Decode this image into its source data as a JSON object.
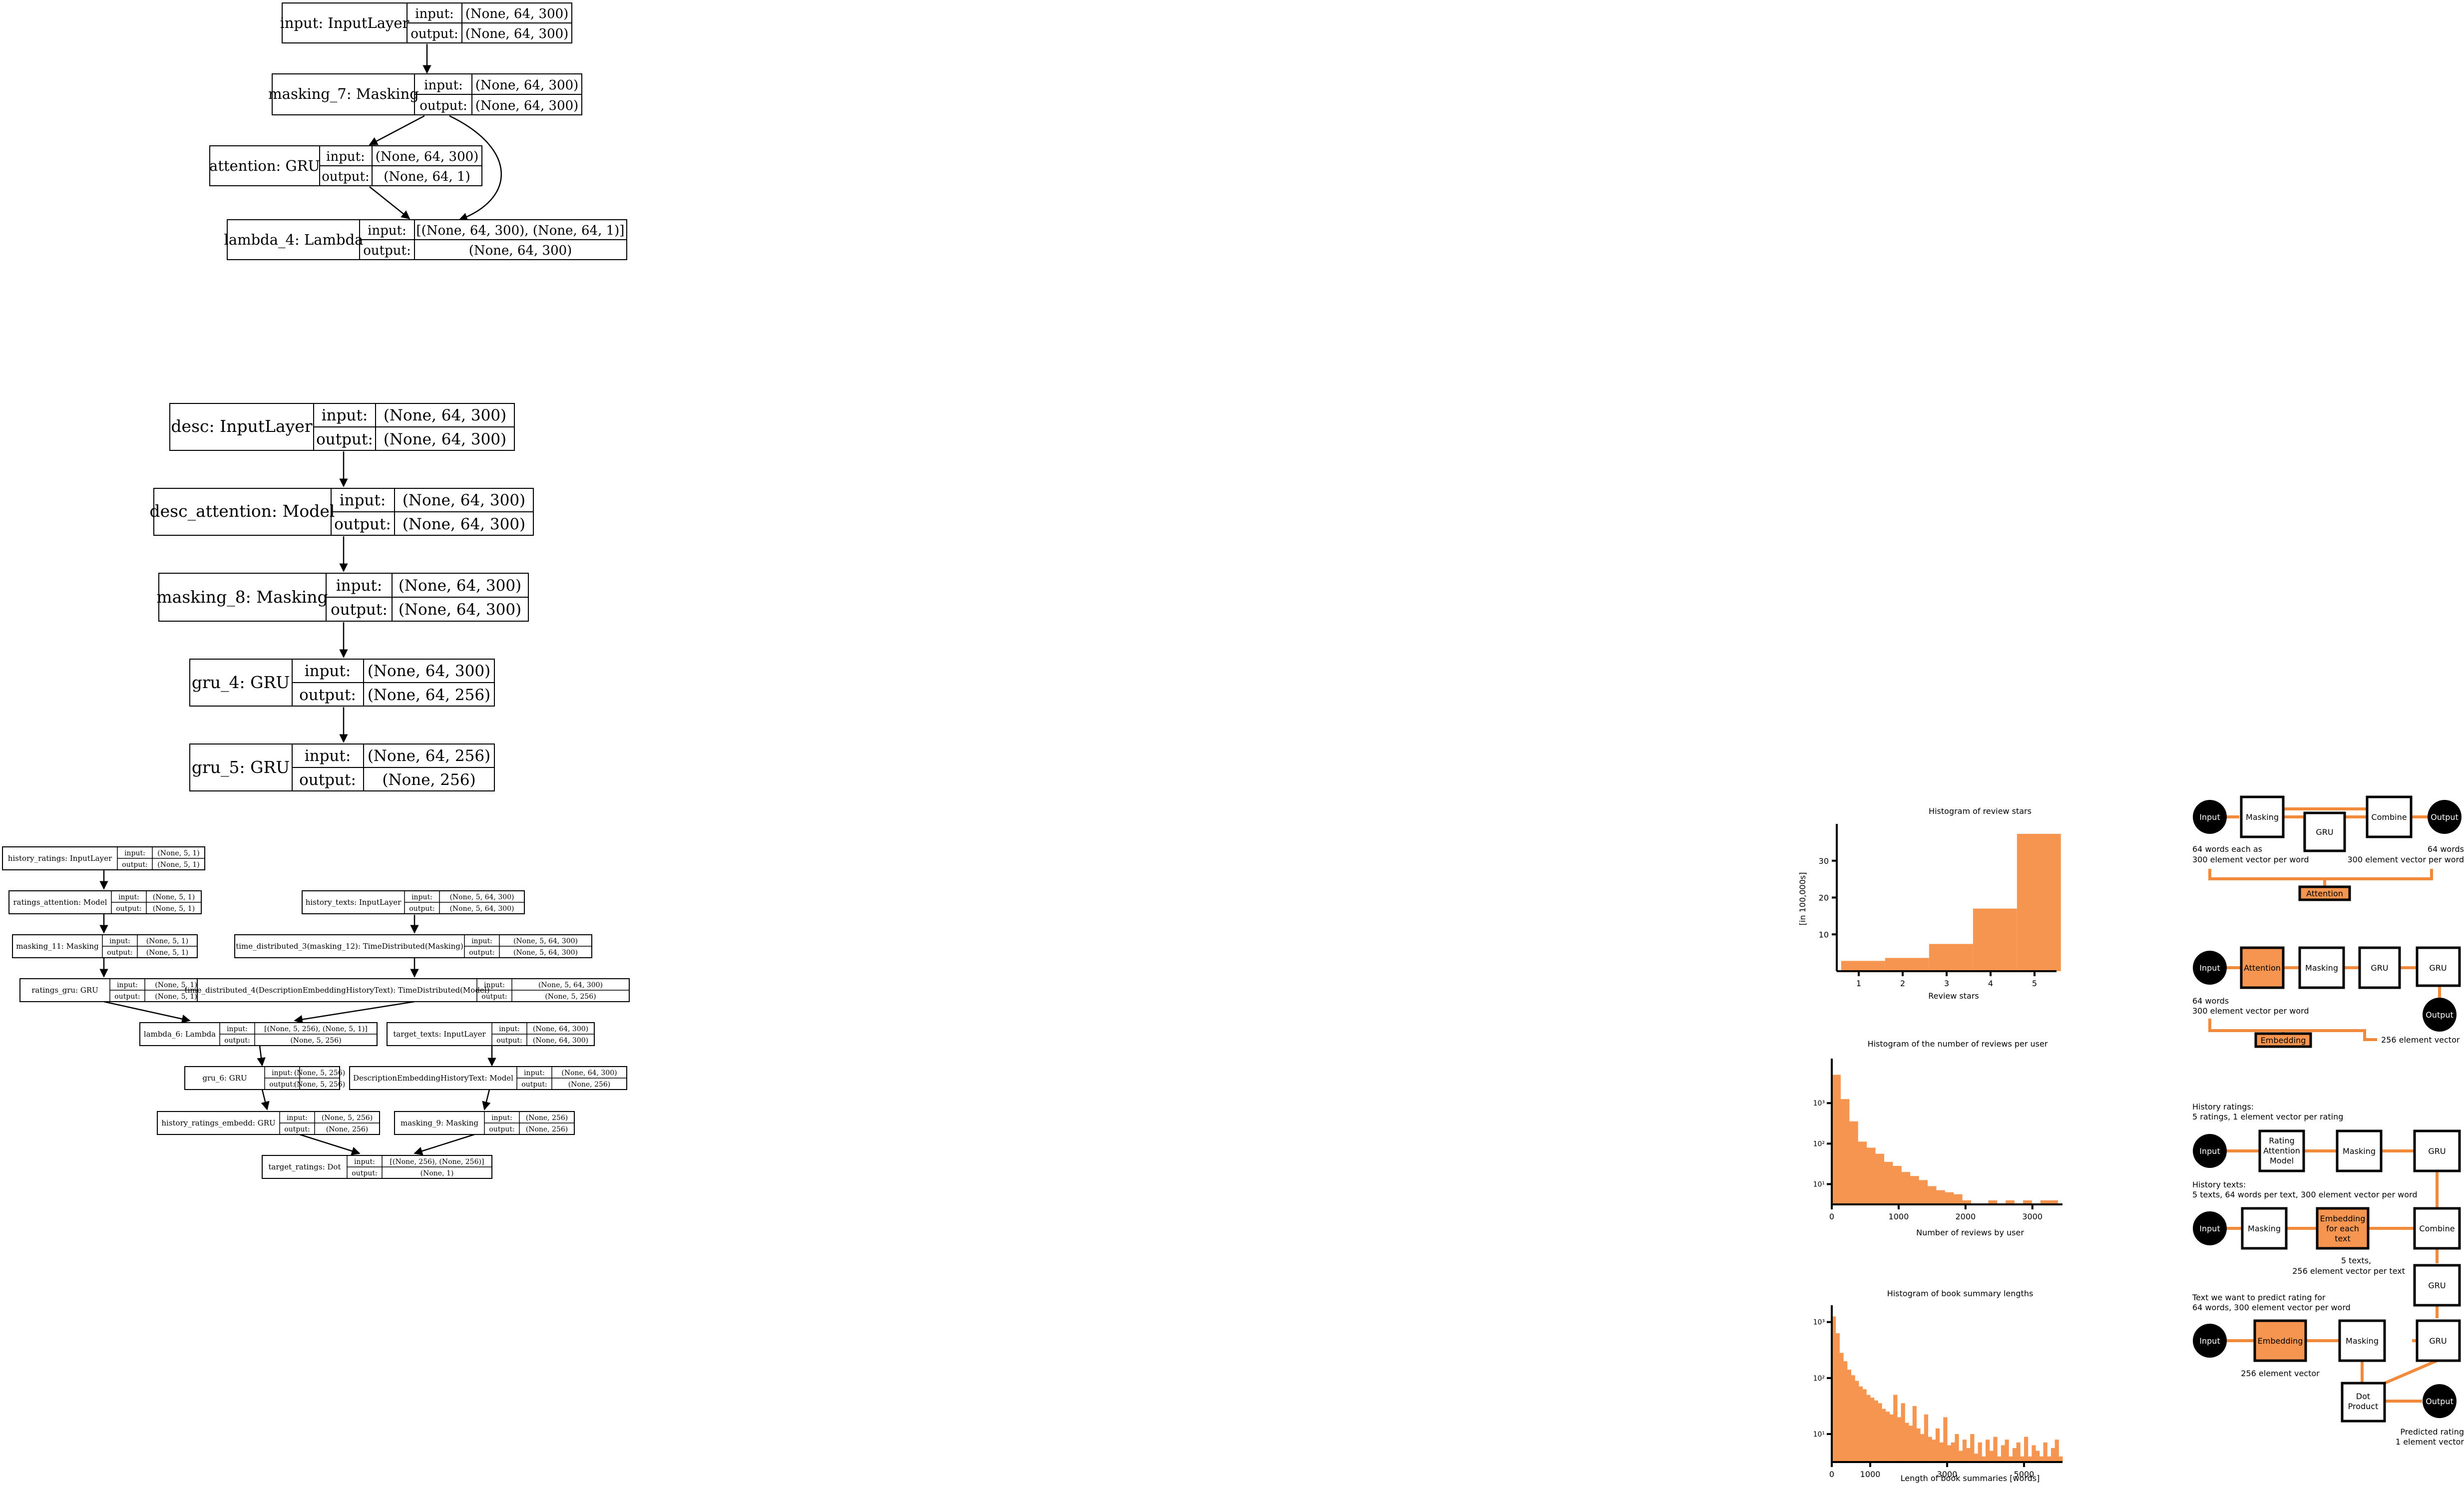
{
  "keras_graphs": [
    {
      "nodes": [
        {
          "name": "input: InputLayer",
          "input": "(None, 64, 300)",
          "output": "(None, 64, 300)"
        },
        {
          "name": "masking_7: Masking",
          "input": "(None, 64, 300)",
          "output": "(None, 64, 300)"
        },
        {
          "name": "attention: GRU",
          "input": "(None, 64, 300)",
          "output": "(None, 64, 1)"
        },
        {
          "name": "lambda_4: Lambda",
          "input": "[(None, 64, 300), (None, 64, 1)]",
          "output": "(None, 64, 300)"
        }
      ]
    },
    {
      "nodes": [
        {
          "name": "desc: InputLayer",
          "input": "(None, 64, 300)",
          "output": "(None, 64, 300)"
        },
        {
          "name": "desc_attention: Model",
          "input": "(None, 64, 300)",
          "output": "(None, 64, 300)"
        },
        {
          "name": "masking_8: Masking",
          "input": "(None, 64, 300)",
          "output": "(None, 64, 300)"
        },
        {
          "name": "gru_4: GRU",
          "input": "(None, 64, 300)",
          "output": "(None, 64, 256)"
        },
        {
          "name": "gru_5: GRU",
          "input": "(None, 64, 256)",
          "output": "(None, 256)"
        }
      ]
    },
    {
      "nodes": [
        {
          "name": "history_ratings: InputLayer",
          "input": "(None, 5, 1)",
          "output": "(None, 5, 1)"
        },
        {
          "name": "ratings_attention: Model",
          "input": "(None, 5, 1)",
          "output": "(None, 5, 1)"
        },
        {
          "name": "history_texts: InputLayer",
          "input": "(None, 5, 64, 300)",
          "output": "(None, 5, 64, 300)"
        },
        {
          "name": "masking_11: Masking",
          "input": "(None, 5, 1)",
          "output": "(None, 5, 1)"
        },
        {
          "name": "time_distributed_3(masking_12): TimeDistributed(Masking)",
          "input": "(None, 5, 64, 300)",
          "output": "(None, 5, 64, 300)"
        },
        {
          "name": "ratings_gru: GRU",
          "input": "(None, 5, 1)",
          "output": "(None, 5, 1)"
        },
        {
          "name": "time_distributed_4(DescriptionEmbeddingHistoryText): TimeDistributed(Model)",
          "input": "(None, 5, 64, 300)",
          "output": "(None, 5, 256)"
        },
        {
          "name": "lambda_6: Lambda",
          "input": "[(None, 5, 256), (None, 5, 1)]",
          "output": "(None, 5, 256)"
        },
        {
          "name": "target_texts: InputLayer",
          "input": "(None, 64, 300)",
          "output": "(None, 64, 300)"
        },
        {
          "name": "gru_6: GRU",
          "input": "(None, 5, 256)",
          "output": "(None, 5, 256)"
        },
        {
          "name": "DescriptionEmbeddingHistoryText: Model",
          "input": "(None, 64, 300)",
          "output": "(None, 256)"
        },
        {
          "name": "history_ratings_embedd: GRU",
          "input": "(None, 5, 256)",
          "output": "(None, 256)"
        },
        {
          "name": "masking_9: Masking",
          "input": "(None, 256)",
          "output": "(None, 256)"
        },
        {
          "name": "target_ratings: Dot",
          "input": "[(None, 256), (None, 256)]",
          "output": "(None, 1)"
        }
      ]
    }
  ],
  "port_labels": {
    "input": "input:",
    "output": "output:"
  },
  "charts": [
    {
      "type": "bar",
      "title": "Histogram of review stars",
      "xlabel": "Review stars",
      "ylabel": "[in 100,000s]",
      "x_ticks": [
        "1",
        "2",
        "3",
        "4",
        "5"
      ],
      "y_ticks": [
        "10",
        "20",
        "30"
      ],
      "ylim": [
        0,
        40
      ],
      "xlim": [
        0.5,
        5.5
      ],
      "bins": [
        [
          0.6,
          1.6,
          2.8
        ],
        [
          1.6,
          2.6,
          3.6
        ],
        [
          2.6,
          3.6,
          7.4
        ],
        [
          3.6,
          4.6,
          17.0
        ],
        [
          4.6,
          5.6,
          37.3
        ]
      ]
    },
    {
      "type": "bar",
      "title": "Histogram of the number of reviews per user",
      "xlabel": "Number of reviews by user",
      "x_ticks": [
        "0",
        "1000",
        "2000",
        "3000"
      ],
      "y_ticks": [
        "10³",
        "10²",
        "10¹"
      ],
      "y_scale": "log",
      "xlim": [
        0,
        3450
      ],
      "ylim_log10": [
        0.5,
        4.1
      ],
      "bins_log10": [
        3.7,
        3.1,
        2.55,
        2.05,
        1.9,
        1.75,
        1.55,
        1.45,
        1.3,
        1.2,
        1.1,
        0.95,
        0.85,
        0.8,
        0.75,
        0.6,
        0,
        0,
        0.6,
        0,
        0.6,
        0,
        0.6,
        0,
        0.6,
        0.6
      ],
      "bin_width": 130
    },
    {
      "type": "bar",
      "title": "Histogram of book summary lengths",
      "xlabel": "Length of book summaries [words]",
      "x_ticks": [
        "0",
        "1000",
        "3000",
        "5000"
      ],
      "y_ticks": [
        "10³",
        "10²",
        "10¹"
      ],
      "y_scale": "log",
      "xlim": [
        0,
        6000
      ],
      "ylim_log10": [
        0.5,
        3.3
      ],
      "bins_log10": [
        3.1,
        2.8,
        2.45,
        2.3,
        2.15,
        2.05,
        1.95,
        1.85,
        1.8,
        1.7,
        1.65,
        1.6,
        1.55,
        1.45,
        1.4,
        1.35,
        1.7,
        1.3,
        1.55,
        1.2,
        1.15,
        1.5,
        1.1,
        1.0,
        1.35,
        0.95,
        0.9,
        1.1,
        0.85,
        1.3,
        0.8,
        0.85,
        1.0,
        0.7,
        0.9,
        0.75,
        1.0,
        0.65,
        0.85,
        0.6,
        0.9,
        0.7,
        0.95,
        0.6,
        0.8,
        0.9,
        0.6,
        0.75,
        0.85,
        0.6,
        0.95,
        0.6,
        0.8,
        0.7,
        0.6,
        0.85,
        0.6,
        0.75,
        0.9,
        0.6
      ],
      "bin_width": 100
    }
  ],
  "flow_diagrams": {
    "attention": {
      "input": "Input",
      "masking": "Masking",
      "gru": "GRU",
      "combine": "Combine",
      "output": "Output",
      "note_in_1": "64 words each as",
      "note_in_2": "300 element vector per word",
      "note_out_1": "64 words",
      "note_out_2": "300 element vector per word",
      "tag": "Attention"
    },
    "embedding": {
      "input": "Input",
      "attention": "Attention",
      "masking": "Masking",
      "gru1": "GRU",
      "gru2": "GRU",
      "output": "Output",
      "note_in_1": "64 words",
      "note_in_2": "300 element vector per word",
      "note_out": "256 element vector",
      "tag": "Embedding"
    },
    "full": {
      "ratings_head_1": "History ratings:",
      "ratings_head_2": "5 ratings, 1 element vector per rating",
      "input1": "Input",
      "rating_att_1": "Rating",
      "rating_att_2": "Attention",
      "rating_att_3": "Model",
      "masking1": "Masking",
      "gru_a": "GRU",
      "texts_head_1": "History texts:",
      "texts_head_2": "5 texts, 64 words per text, 300 element vector per word",
      "input2": "Input",
      "masking2": "Masking",
      "emb_each_1": "Embedding",
      "emb_each_2": "for each",
      "emb_each_3": "text",
      "combine": "Combine",
      "note_mid_1": "5 texts,",
      "note_mid_2": "256 element vector per text",
      "gru_b": "GRU",
      "target_head_1": "Text we want to predict rating for",
      "target_head_2": "64 words, 300 element vector per word",
      "input3": "Input",
      "embedding": "Embedding",
      "masking3": "Masking",
      "gru_c": "GRU",
      "note_emb": "256 element vector",
      "dot_1": "Dot",
      "dot_2": "Product",
      "output": "Output",
      "note_out_1": "Predicted rating",
      "note_out_2": "1 element vector"
    }
  }
}
